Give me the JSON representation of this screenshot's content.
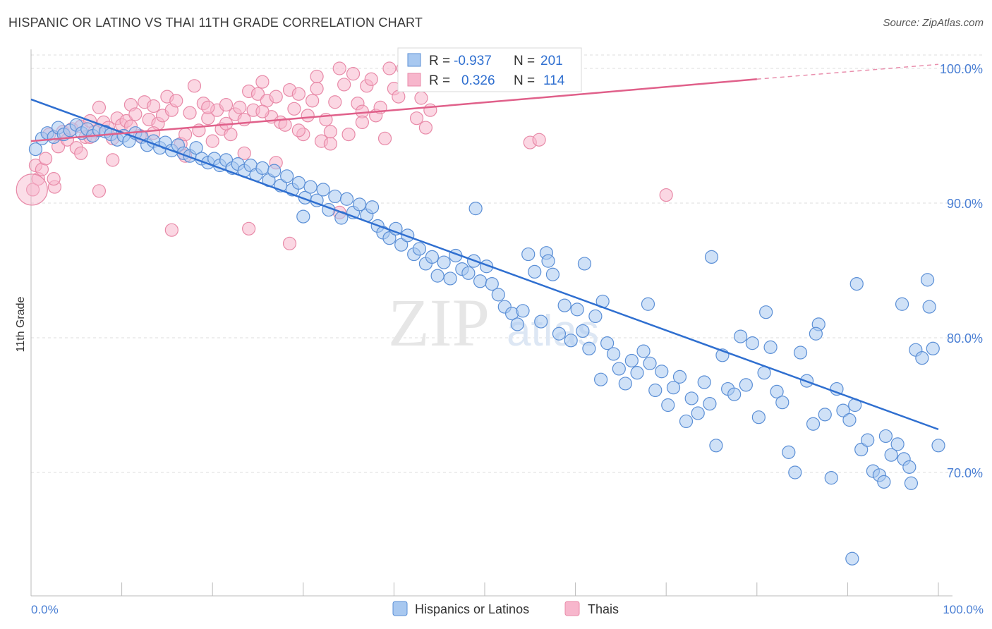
{
  "header": {
    "title": "HISPANIC OR LATINO VS THAI 11TH GRADE CORRELATION CHART",
    "source": "Source: ZipAtlas.com"
  },
  "watermark": {
    "zip": "ZIP",
    "atlas": "atlas"
  },
  "colors": {
    "blue_fill": "#a8c8f0",
    "blue_stroke": "#5b8fd6",
    "blue_line": "#2f6fd0",
    "pink_fill": "#f7b6cc",
    "pink_stroke": "#e88aa8",
    "pink_line": "#e0608a",
    "tick_label": "#4a7fd4",
    "grid": "#dddddd"
  },
  "legend_stats": {
    "blue": {
      "r_label": "R =",
      "r_value": "-0.937",
      "n_label": "N =",
      "n_value": "201"
    },
    "pink": {
      "r_label": "R =",
      "r_value": "0.326",
      "n_label": "N =",
      "n_value": "114"
    }
  },
  "bottom_legend": {
    "blue_label": "Hispanics or Latinos",
    "pink_label": "Thais"
  },
  "chart_data": {
    "type": "scatter",
    "title": "HISPANIC OR LATINO VS THAI 11TH GRADE CORRELATION CHART",
    "xlabel": "",
    "ylabel": "11th Grade",
    "xlim": [
      0,
      100
    ],
    "ylim": [
      60.5,
      103
    ],
    "x_tick_labels": [
      "0.0%",
      "100.0%"
    ],
    "y_ticks": [
      70,
      80,
      90,
      100
    ],
    "y_tick_labels": [
      "70.0%",
      "80.0%",
      "90.0%",
      "100.0%"
    ],
    "grid": true,
    "legend_position": "top-center",
    "series": [
      {
        "name": "Hispanics or Latinos",
        "color": "#a8c8f0",
        "r": -0.937,
        "n": 201,
        "trend": {
          "x": [
            0,
            100
          ],
          "y": [
            97.7,
            73.2
          ]
        },
        "points": [
          [
            0.5,
            94.0
          ],
          [
            1.2,
            94.8
          ],
          [
            1.8,
            95.2
          ],
          [
            2.5,
            94.9
          ],
          [
            3.0,
            95.6
          ],
          [
            3.6,
            95.1
          ],
          [
            4.3,
            95.4
          ],
          [
            5.0,
            95.8
          ],
          [
            5.6,
            95.2
          ],
          [
            6.2,
            95.5
          ],
          [
            6.8,
            95.0
          ],
          [
            7.5,
            95.4
          ],
          [
            8.2,
            95.3
          ],
          [
            8.8,
            95.1
          ],
          [
            9.5,
            94.7
          ],
          [
            10.2,
            95.0
          ],
          [
            10.8,
            94.6
          ],
          [
            11.5,
            95.2
          ],
          [
            12.2,
            94.9
          ],
          [
            12.8,
            94.3
          ],
          [
            13.5,
            94.6
          ],
          [
            14.2,
            94.1
          ],
          [
            14.8,
            94.5
          ],
          [
            15.5,
            93.9
          ],
          [
            16.2,
            94.3
          ],
          [
            16.8,
            93.7
          ],
          [
            17.5,
            93.5
          ],
          [
            18.2,
            94.1
          ],
          [
            18.8,
            93.3
          ],
          [
            19.5,
            93.0
          ],
          [
            20.2,
            93.3
          ],
          [
            20.8,
            92.8
          ],
          [
            21.5,
            93.2
          ],
          [
            22.2,
            92.6
          ],
          [
            22.8,
            92.9
          ],
          [
            23.5,
            92.4
          ],
          [
            24.2,
            92.8
          ],
          [
            24.8,
            92.1
          ],
          [
            25.5,
            92.6
          ],
          [
            26.2,
            91.7
          ],
          [
            26.8,
            92.4
          ],
          [
            27.5,
            91.3
          ],
          [
            28.2,
            92.0
          ],
          [
            28.8,
            91.0
          ],
          [
            29.5,
            91.5
          ],
          [
            30.2,
            90.4
          ],
          [
            30.8,
            91.2
          ],
          [
            31.5,
            90.2
          ],
          [
            32.2,
            91.0
          ],
          [
            32.8,
            89.5
          ],
          [
            33.5,
            90.5
          ],
          [
            34.2,
            88.9
          ],
          [
            34.8,
            90.3
          ],
          [
            35.5,
            89.3
          ],
          [
            36.2,
            89.9
          ],
          [
            37.0,
            89.1
          ],
          [
            37.6,
            89.7
          ],
          [
            38.2,
            88.3
          ],
          [
            38.8,
            87.8
          ],
          [
            39.5,
            87.4
          ],
          [
            40.2,
            88.1
          ],
          [
            40.8,
            86.9
          ],
          [
            41.5,
            87.6
          ],
          [
            42.2,
            86.2
          ],
          [
            42.8,
            86.6
          ],
          [
            43.5,
            85.5
          ],
          [
            44.2,
            86.0
          ],
          [
            44.8,
            84.6
          ],
          [
            45.5,
            85.6
          ],
          [
            46.2,
            84.4
          ],
          [
            46.8,
            86.1
          ],
          [
            47.5,
            85.1
          ],
          [
            48.2,
            84.8
          ],
          [
            48.8,
            85.7
          ],
          [
            49.5,
            84.2
          ],
          [
            50.2,
            85.3
          ],
          [
            50.8,
            84.0
          ],
          [
            51.5,
            83.2
          ],
          [
            52.2,
            82.3
          ],
          [
            53.0,
            81.8
          ],
          [
            53.6,
            81.0
          ],
          [
            54.2,
            82.0
          ],
          [
            54.8,
            86.2
          ],
          [
            55.5,
            84.9
          ],
          [
            56.2,
            81.2
          ],
          [
            56.8,
            86.3
          ],
          [
            57.5,
            84.7
          ],
          [
            58.2,
            80.3
          ],
          [
            58.8,
            82.4
          ],
          [
            59.5,
            79.8
          ],
          [
            60.2,
            82.1
          ],
          [
            60.8,
            80.5
          ],
          [
            61.5,
            79.2
          ],
          [
            62.2,
            81.6
          ],
          [
            62.8,
            76.9
          ],
          [
            63.5,
            79.6
          ],
          [
            64.2,
            78.8
          ],
          [
            64.8,
            77.7
          ],
          [
            65.5,
            76.6
          ],
          [
            66.2,
            78.3
          ],
          [
            66.8,
            77.4
          ],
          [
            67.5,
            79.0
          ],
          [
            68.2,
            78.1
          ],
          [
            68.8,
            76.1
          ],
          [
            69.5,
            77.5
          ],
          [
            70.2,
            75.0
          ],
          [
            70.8,
            76.3
          ],
          [
            71.5,
            77.1
          ],
          [
            72.2,
            73.8
          ],
          [
            72.8,
            75.5
          ],
          [
            73.5,
            74.4
          ],
          [
            74.2,
            76.7
          ],
          [
            74.8,
            75.1
          ],
          [
            75.5,
            72.0
          ],
          [
            76.2,
            78.7
          ],
          [
            76.8,
            76.2
          ],
          [
            77.5,
            75.8
          ],
          [
            78.2,
            80.1
          ],
          [
            78.8,
            76.5
          ],
          [
            79.5,
            79.6
          ],
          [
            80.2,
            74.1
          ],
          [
            80.8,
            77.4
          ],
          [
            81.5,
            79.3
          ],
          [
            82.2,
            76.0
          ],
          [
            82.8,
            75.2
          ],
          [
            83.5,
            71.5
          ],
          [
            84.2,
            70.0
          ],
          [
            84.8,
            78.9
          ],
          [
            85.5,
            76.8
          ],
          [
            86.2,
            73.6
          ],
          [
            86.8,
            81.0
          ],
          [
            87.5,
            74.3
          ],
          [
            88.2,
            69.6
          ],
          [
            88.8,
            76.2
          ],
          [
            89.5,
            74.6
          ],
          [
            90.2,
            73.9
          ],
          [
            90.8,
            75.0
          ],
          [
            91.5,
            71.7
          ],
          [
            92.2,
            72.4
          ],
          [
            92.8,
            70.1
          ],
          [
            93.5,
            69.8
          ],
          [
            94.2,
            72.7
          ],
          [
            94.8,
            71.3
          ],
          [
            95.5,
            72.1
          ],
          [
            96.2,
            71.0
          ],
          [
            96.8,
            70.4
          ],
          [
            97.5,
            79.1
          ],
          [
            98.2,
            78.5
          ],
          [
            98.8,
            84.3
          ],
          [
            99.4,
            79.2
          ],
          [
            100.0,
            72.0
          ],
          [
            94.0,
            69.3
          ],
          [
            97.0,
            69.2
          ],
          [
            90.5,
            63.6
          ],
          [
            91.0,
            84.0
          ],
          [
            75.0,
            86.0
          ],
          [
            63.0,
            82.7
          ],
          [
            68.0,
            82.5
          ],
          [
            81.0,
            81.9
          ],
          [
            86.5,
            80.3
          ],
          [
            96.0,
            82.5
          ],
          [
            99.0,
            82.3
          ],
          [
            57.0,
            85.7
          ],
          [
            61.0,
            85.5
          ],
          [
            49.0,
            89.6
          ],
          [
            30.0,
            89.0
          ]
        ]
      },
      {
        "name": "Thais",
        "color": "#f7b6cc",
        "r": 0.326,
        "n": 114,
        "trend": {
          "x": [
            0,
            80
          ],
          "y": [
            94.6,
            99.2
          ]
        },
        "trend_dashed": {
          "x": [
            80,
            100
          ],
          "y": [
            99.2,
            100.3
          ]
        },
        "points": [
          [
            0.2,
            91.0
          ],
          [
            0.5,
            92.8
          ],
          [
            0.8,
            91.8
          ],
          [
            1.2,
            92.5
          ],
          [
            1.6,
            93.3
          ],
          [
            2.0,
            95.1
          ],
          [
            2.6,
            91.2
          ],
          [
            3.0,
            94.2
          ],
          [
            3.5,
            95.3
          ],
          [
            4.0,
            94.7
          ],
          [
            4.5,
            95.5
          ],
          [
            5.0,
            94.1
          ],
          [
            5.5,
            95.7
          ],
          [
            6.0,
            94.9
          ],
          [
            6.5,
            96.1
          ],
          [
            7.0,
            95.3
          ],
          [
            7.5,
            97.1
          ],
          [
            8.0,
            96.0
          ],
          [
            8.5,
            95.6
          ],
          [
            9.0,
            94.8
          ],
          [
            9.5,
            96.3
          ],
          [
            10.0,
            95.8
          ],
          [
            10.5,
            96.1
          ],
          [
            11.0,
            97.3
          ],
          [
            11.5,
            96.6
          ],
          [
            12.0,
            95.0
          ],
          [
            12.5,
            97.5
          ],
          [
            13.0,
            96.2
          ],
          [
            13.5,
            97.2
          ],
          [
            14.0,
            95.9
          ],
          [
            14.5,
            96.5
          ],
          [
            15.0,
            97.9
          ],
          [
            15.5,
            96.9
          ],
          [
            16.0,
            97.6
          ],
          [
            16.5,
            94.4
          ],
          [
            17.0,
            95.1
          ],
          [
            17.5,
            96.7
          ],
          [
            18.0,
            98.7
          ],
          [
            18.5,
            95.4
          ],
          [
            19.0,
            97.4
          ],
          [
            19.5,
            96.3
          ],
          [
            20.0,
            94.6
          ],
          [
            20.5,
            96.9
          ],
          [
            21.0,
            95.5
          ],
          [
            21.5,
            97.3
          ],
          [
            22.0,
            95.1
          ],
          [
            22.5,
            96.6
          ],
          [
            23.0,
            97.1
          ],
          [
            23.5,
            96.2
          ],
          [
            24.0,
            98.3
          ],
          [
            24.5,
            96.9
          ],
          [
            25.0,
            98.1
          ],
          [
            25.5,
            99.0
          ],
          [
            26.0,
            97.6
          ],
          [
            26.5,
            96.4
          ],
          [
            27.0,
            97.9
          ],
          [
            27.5,
            96.0
          ],
          [
            28.0,
            95.8
          ],
          [
            28.5,
            98.4
          ],
          [
            29.0,
            97.0
          ],
          [
            29.5,
            98.1
          ],
          [
            30.0,
            95.1
          ],
          [
            30.5,
            96.5
          ],
          [
            31.0,
            97.6
          ],
          [
            31.5,
            98.5
          ],
          [
            32.0,
            94.6
          ],
          [
            32.5,
            96.2
          ],
          [
            33.0,
            95.3
          ],
          [
            33.5,
            97.5
          ],
          [
            34.0,
            100.0
          ],
          [
            34.5,
            98.8
          ],
          [
            35.0,
            95.1
          ],
          [
            35.5,
            99.6
          ],
          [
            36.0,
            97.4
          ],
          [
            36.5,
            96.8
          ],
          [
            37.0,
            98.7
          ],
          [
            37.5,
            99.2
          ],
          [
            38.0,
            96.5
          ],
          [
            38.5,
            97.1
          ],
          [
            39.0,
            94.8
          ],
          [
            39.5,
            100.0
          ],
          [
            40.0,
            98.5
          ],
          [
            40.5,
            97.9
          ],
          [
            41.0,
            100.0
          ],
          [
            41.5,
            98.9
          ],
          [
            42.0,
            99.8
          ],
          [
            42.5,
            96.3
          ],
          [
            43.0,
            97.8
          ],
          [
            43.5,
            95.6
          ],
          [
            44.0,
            96.9
          ],
          [
            2.5,
            91.8
          ],
          [
            5.5,
            93.7
          ],
          [
            7.5,
            90.9
          ],
          [
            9.0,
            93.2
          ],
          [
            15.5,
            88.0
          ],
          [
            23.5,
            93.7
          ],
          [
            24.0,
            88.1
          ],
          [
            27.0,
            93.0
          ],
          [
            28.5,
            87.0
          ],
          [
            34.0,
            89.3
          ],
          [
            55.0,
            94.5
          ],
          [
            56.0,
            94.7
          ],
          [
            70.0,
            90.6
          ],
          [
            31.5,
            99.4
          ],
          [
            6.5,
            94.9
          ],
          [
            11.0,
            95.7
          ],
          [
            13.5,
            95.2
          ],
          [
            17.0,
            93.5
          ],
          [
            19.5,
            97.1
          ],
          [
            21.5,
            95.9
          ],
          [
            25.5,
            96.8
          ],
          [
            29.5,
            95.4
          ],
          [
            33.0,
            94.4
          ],
          [
            36.5,
            96.0
          ]
        ]
      }
    ]
  }
}
